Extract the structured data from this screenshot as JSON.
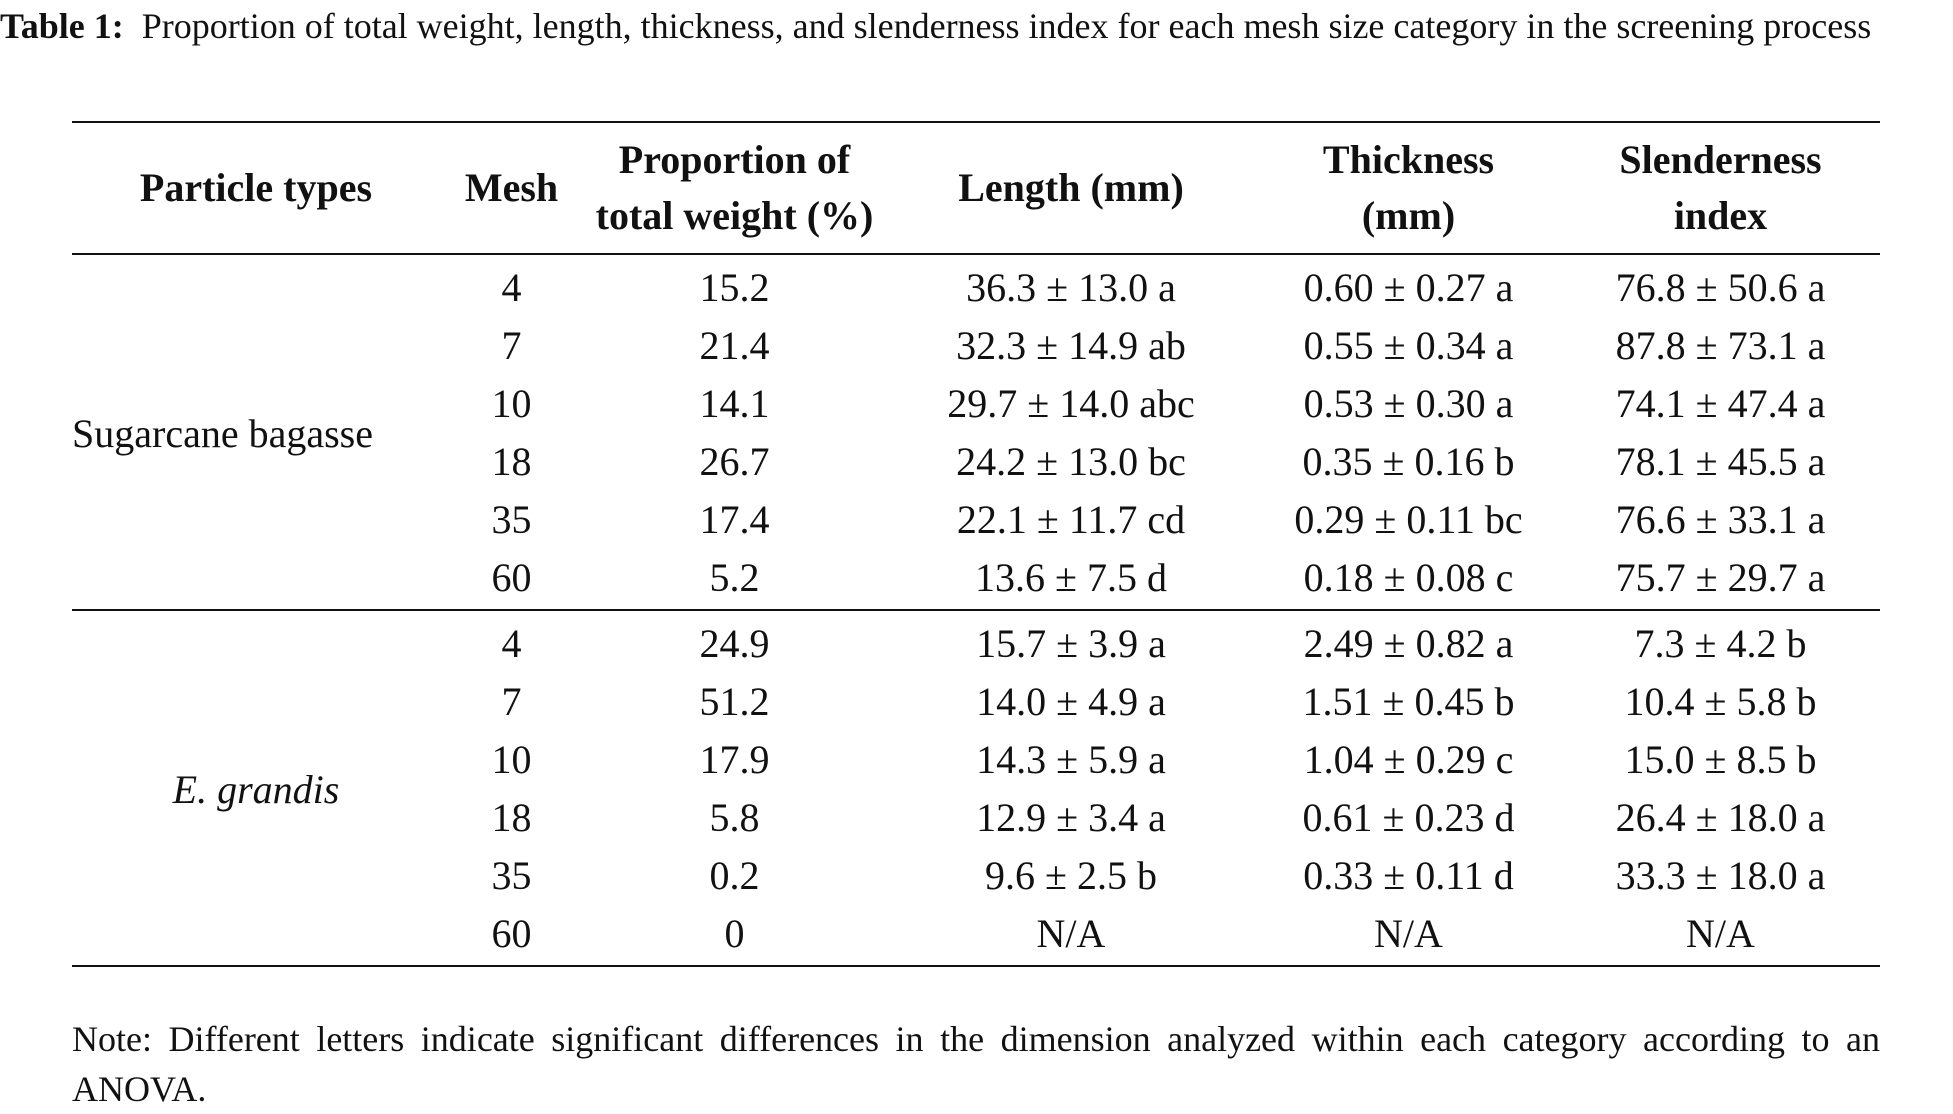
{
  "caption": {
    "label": "Table 1:",
    "text": "Proportion of total weight, length, thickness, and slenderness index for each mesh size category in the screening process"
  },
  "headers": {
    "particle_types": "Particle types",
    "mesh": "Mesh",
    "proportion_line1": "Proportion of",
    "proportion_line2": "total weight (%)",
    "length": "Length (mm)",
    "thickness_line1": "Thickness",
    "thickness_line2": "(mm)",
    "slenderness_line1": "Slenderness",
    "slenderness_line2": "index"
  },
  "groups": [
    {
      "name": "Sugarcane bagasse",
      "rows": [
        {
          "mesh": "4",
          "proportion": "15.2",
          "length": "36.3 ± 13.0 a",
          "thickness": "0.60 ± 0.27 a",
          "slenderness": "76.8 ± 50.6 a"
        },
        {
          "mesh": "7",
          "proportion": "21.4",
          "length": "32.3 ± 14.9 ab",
          "thickness": "0.55 ± 0.34 a",
          "slenderness": "87.8 ± 73.1 a"
        },
        {
          "mesh": "10",
          "proportion": "14.1",
          "length": "29.7 ± 14.0 abc",
          "thickness": "0.53 ± 0.30 a",
          "slenderness": "74.1 ± 47.4 a"
        },
        {
          "mesh": "18",
          "proportion": "26.7",
          "length": "24.2 ± 13.0 bc",
          "thickness": "0.35 ± 0.16 b",
          "slenderness": "78.1 ± 45.5 a"
        },
        {
          "mesh": "35",
          "proportion": "17.4",
          "length": "22.1 ± 11.7 cd",
          "thickness": "0.29 ± 0.11 bc",
          "slenderness": "76.6 ± 33.1 a"
        },
        {
          "mesh": "60",
          "proportion": "5.2",
          "length": "13.6 ± 7.5 d",
          "thickness": "0.18 ± 0.08 c",
          "slenderness": "75.7 ± 29.7 a"
        }
      ]
    },
    {
      "name": "E. grandis",
      "rows": [
        {
          "mesh": "4",
          "proportion": "24.9",
          "length": "15.7 ± 3.9 a",
          "thickness": "2.49 ± 0.82 a",
          "slenderness": "7.3 ± 4.2 b"
        },
        {
          "mesh": "7",
          "proportion": "51.2",
          "length": "14.0 ± 4.9 a",
          "thickness": "1.51 ± 0.45 b",
          "slenderness": "10.4 ± 5.8 b"
        },
        {
          "mesh": "10",
          "proportion": "17.9",
          "length": "14.3 ± 5.9 a",
          "thickness": "1.04 ± 0.29 c",
          "slenderness": "15.0 ± 8.5 b"
        },
        {
          "mesh": "18",
          "proportion": "5.8",
          "length": "12.9 ± 3.4 a",
          "thickness": "0.61 ± 0.23 d",
          "slenderness": "26.4 ± 18.0 a"
        },
        {
          "mesh": "35",
          "proportion": "0.2",
          "length": "9.6 ± 2.5 b",
          "thickness": "0.33 ± 0.11 d",
          "slenderness": "33.3 ± 18.0 a"
        },
        {
          "mesh": "60",
          "proportion": "0",
          "length": "N/A",
          "thickness": "N/A",
          "slenderness": "N/A"
        }
      ]
    }
  ],
  "note": "Note: Different letters indicate significant differences in the dimension analyzed within each category according to an ANOVA."
}
